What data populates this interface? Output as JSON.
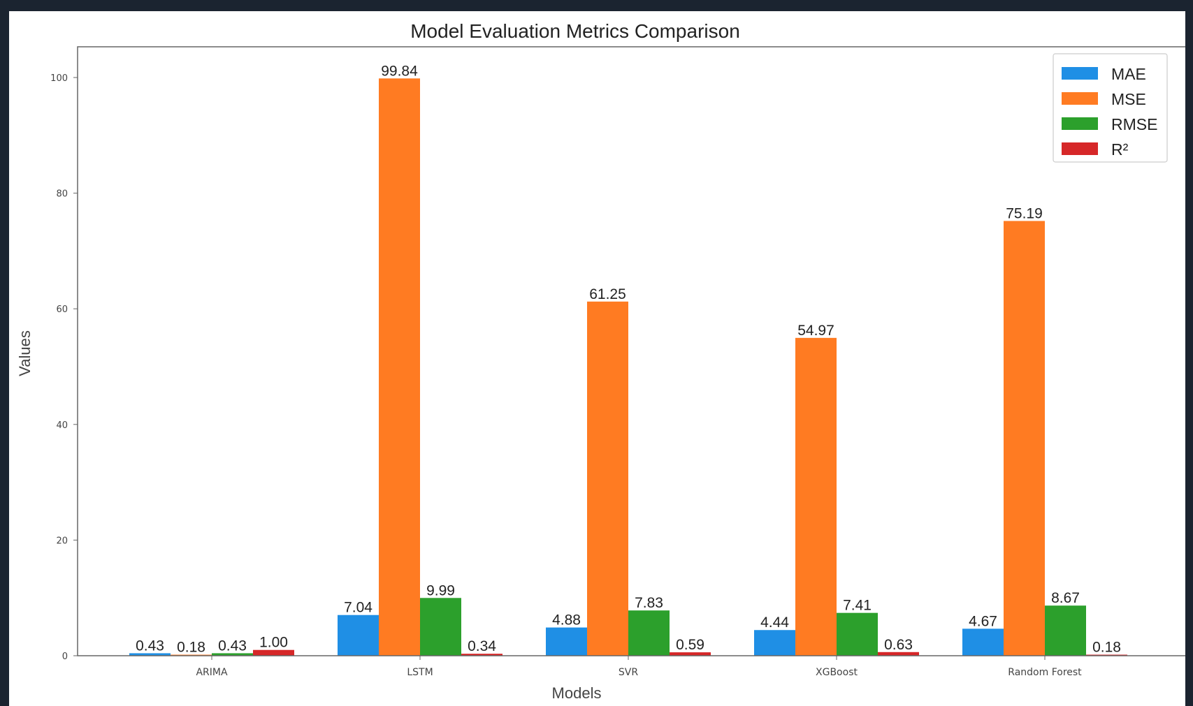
{
  "chart_data": {
    "type": "bar",
    "title": "Model Evaluation Metrics Comparison",
    "xlabel": "Models",
    "ylabel": "Values",
    "categories": [
      "ARIMA",
      "LSTM",
      "SVR",
      "XGBoost",
      "Random Forest"
    ],
    "series": [
      {
        "name": "MAE",
        "color": "#1f8fe5",
        "values": [
          0.43,
          7.04,
          4.88,
          4.44,
          4.67
        ],
        "labels": [
          "0.43",
          "7.04",
          "4.88",
          "4.44",
          "4.67"
        ]
      },
      {
        "name": "MSE",
        "color": "#ff7b22",
        "values": [
          0.18,
          99.84,
          61.25,
          54.97,
          75.19
        ],
        "labels": [
          "0.18",
          "99.84",
          "61.25",
          "54.97",
          "75.19"
        ]
      },
      {
        "name": "RMSE",
        "color": "#2ca02c",
        "values": [
          0.43,
          9.99,
          7.83,
          7.41,
          8.67
        ],
        "labels": [
          "0.43",
          "9.99",
          "7.83",
          "7.41",
          "8.67"
        ]
      },
      {
        "name": "R²",
        "color": "#d62728",
        "values": [
          1.0,
          0.34,
          0.59,
          0.63,
          0.18
        ],
        "labels": [
          "1.00",
          "0.34",
          "0.59",
          "0.63",
          "0.18"
        ]
      }
    ],
    "ylim": [
      0,
      105
    ],
    "yticks": [
      0,
      20,
      40,
      60,
      80,
      100
    ],
    "ytick_labels": [
      "0",
      "20",
      "40",
      "60",
      "80",
      "100"
    ],
    "legend": "top-right",
    "grid": false
  }
}
